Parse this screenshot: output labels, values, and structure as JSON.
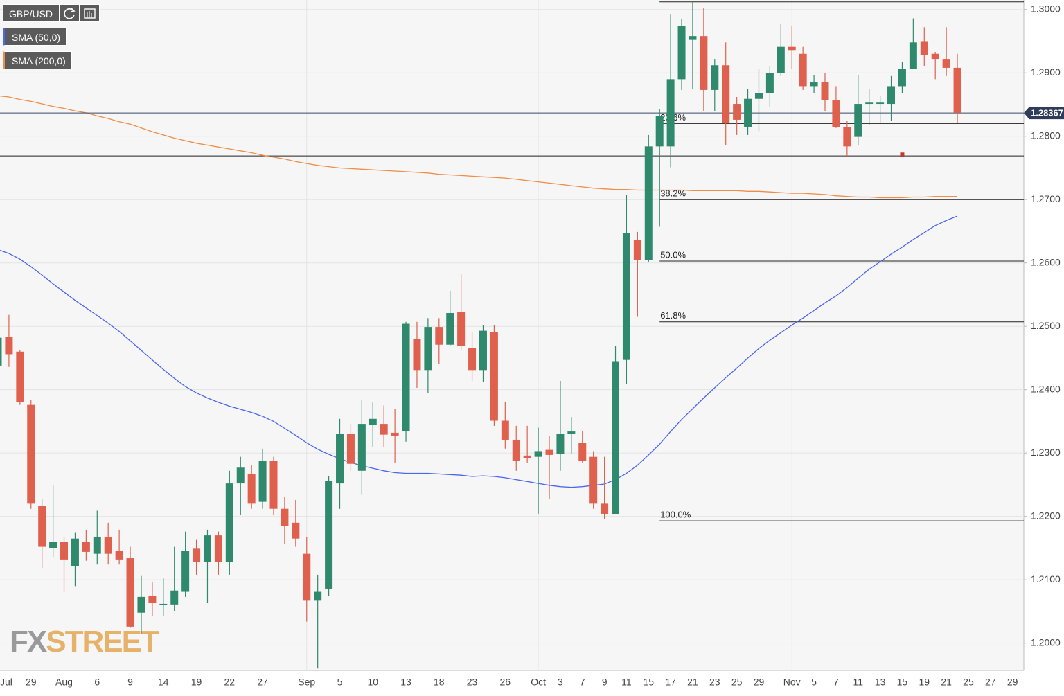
{
  "chart_data": {
    "type": "candlestick",
    "symbol": "GBP/USD",
    "categories": [
      "Jul",
      null,
      null,
      "29",
      null,
      null,
      "Aug",
      null,
      null,
      "6",
      null,
      null,
      "9",
      null,
      null,
      "14",
      null,
      null,
      "19",
      null,
      null,
      "22",
      null,
      null,
      "27",
      null,
      null,
      null,
      "Sep",
      null,
      null,
      "5",
      null,
      null,
      "10",
      null,
      null,
      "13",
      null,
      null,
      "18",
      null,
      null,
      "23",
      null,
      null,
      "26",
      null,
      null,
      "Oct",
      null,
      "3",
      null,
      "7",
      null,
      "9",
      null,
      "11",
      null,
      "15",
      null,
      "17",
      null,
      "21",
      null,
      "23",
      null,
      "25",
      null,
      "29",
      null,
      null,
      "Nov",
      null,
      "5",
      null,
      "7",
      null,
      "11",
      null,
      "13",
      null,
      "15",
      null,
      "19",
      null,
      "21",
      null,
      "25",
      null,
      "27",
      null,
      "29"
    ],
    "open": [
      1.2438,
      1.2483,
      1.246,
      1.2376,
      1.2217,
      1.215,
      1.216,
      1.2121,
      1.216,
      1.2141,
      1.2168,
      1.2146,
      1.2134,
      1.2048,
      1.2075,
      1.2061,
      1.2061,
      1.2081,
      1.2149,
      1.2128,
      1.217,
      1.2128,
      1.2252,
      1.2267,
      1.2223,
      1.2288,
      1.2212,
      1.219,
      1.2141,
      1.2067,
      1.2086,
      1.2252,
      1.233,
      1.2272,
      1.2345,
      1.2346,
      1.2332,
      1.2335,
      1.248,
      1.2431,
      1.2499,
      1.2471,
      1.2523,
      1.2466,
      1.2431,
      1.2491,
      1.2351,
      1.2321,
      1.2296,
      1.2294,
      1.2305,
      1.2299,
      1.233,
      1.2316,
      1.2294,
      1.222,
      1.2204,
      1.2447,
      1.2636,
      1.2605,
      1.2784,
      1.2784,
      1.289,
      1.2952,
      1.2958,
      1.2873,
      1.2912,
      1.2851,
      1.2815,
      1.2859,
      1.2868,
      1.29,
      1.2941,
      1.293,
      1.2879,
      1.2886,
      1.2857,
      1.2815,
      1.2799,
      1.2851,
      1.2851,
      1.2851,
      1.2879,
      1.2906,
      1.295,
      1.293,
      1.2922,
      1.2908,
      null,
      null,
      null,
      null,
      null
    ],
    "high": [
      1.2485,
      1.2518,
      1.2463,
      1.2384,
      1.2228,
      1.225,
      1.2168,
      1.2175,
      1.2179,
      1.2209,
      1.219,
      1.2179,
      1.2152,
      1.2106,
      1.2097,
      1.2102,
      1.2152,
      1.2176,
      1.2163,
      1.2179,
      1.2176,
      1.2272,
      1.2294,
      1.2281,
      1.2307,
      1.2294,
      1.2231,
      1.2226,
      1.2168,
      1.2108,
      1.2263,
      1.2354,
      1.2346,
      1.2383,
      1.2381,
      1.2375,
      1.237,
      1.2507,
      1.2507,
      1.2513,
      1.2513,
      1.2556,
      1.2582,
      1.2491,
      1.2502,
      1.2502,
      1.2381,
      1.2343,
      1.2343,
      1.234,
      1.2327,
      1.2414,
      1.2357,
      1.2335,
      1.2303,
      1.2294,
      1.2469,
      1.2707,
      1.2649,
      1.2802,
      1.2843,
      1.2993,
      1.2985,
      1.3013,
      1.3002,
      1.2922,
      1.2948,
      1.2862,
      1.2875,
      1.2906,
      1.2911,
      1.2977,
      1.2974,
      1.2941,
      1.2897,
      1.29,
      1.2879,
      1.2824,
      1.2897,
      1.2875,
      1.2864,
      1.2895,
      1.2917,
      1.2986,
      1.2972,
      1.2933,
      1.2972,
      1.293,
      null,
      null,
      null,
      null,
      null
    ],
    "low": [
      1.243,
      1.2436,
      1.2376,
      1.2212,
      1.2119,
      1.2135,
      1.208,
      1.209,
      1.213,
      1.2124,
      1.2124,
      1.2124,
      1.2024,
      1.2015,
      1.2043,
      1.2043,
      1.2051,
      1.2073,
      1.2108,
      1.2064,
      1.2108,
      1.2108,
      1.2202,
      1.2212,
      1.2212,
      1.2202,
      1.2157,
      1.2152,
      1.2034,
      1.196,
      1.2075,
      1.2212,
      1.2272,
      1.2234,
      1.231,
      1.231,
      1.2285,
      1.2318,
      1.2403,
      1.2395,
      1.2441,
      1.2469,
      1.2463,
      1.2414,
      1.2412,
      1.2343,
      1.2307,
      1.2272,
      1.2285,
      1.2204,
      1.2228,
      1.2272,
      1.2299,
      1.2285,
      1.2212,
      1.2196,
      1.2204,
      1.2409,
      1.2515,
      1.2602,
      1.2657,
      1.2751,
      1.2873,
      1.2875,
      1.284,
      1.284,
      1.2786,
      1.2802,
      1.2802,
      1.2808,
      1.2846,
      1.2895,
      1.2906,
      1.2873,
      1.2868,
      1.284,
      1.2813,
      1.2769,
      1.2786,
      1.2818,
      1.2821,
      1.2824,
      1.2868,
      1.2906,
      1.2911,
      1.289,
      1.2895,
      1.2821,
      null,
      null,
      null,
      null,
      null
    ],
    "close": [
      1.2482,
      1.2456,
      1.2381,
      1.222,
      1.2152,
      1.216,
      1.2132,
      1.2165,
      1.2144,
      1.2168,
      1.2141,
      1.2132,
      1.2026,
      1.2073,
      1.2064,
      1.2062,
      1.2083,
      1.2146,
      1.2128,
      1.217,
      1.2128,
      1.2252,
      1.2277,
      1.222,
      1.2288,
      1.2212,
      1.2185,
      1.2165,
      1.2067,
      1.2081,
      1.2256,
      1.233,
      1.2283,
      1.2346,
      1.2354,
      1.2329,
      1.2327,
      1.2504,
      1.2431,
      1.2499,
      1.2471,
      1.2521,
      1.2469,
      1.2431,
      1.2493,
      1.2351,
      1.2321,
      1.2288,
      1.2292,
      1.2303,
      1.2297,
      1.233,
      1.2334,
      1.2288,
      1.222,
      1.2204,
      1.2445,
      1.2647,
      1.2605,
      1.2784,
      1.2832,
      1.289,
      1.2974,
      1.2958,
      1.2873,
      1.2912,
      1.2821,
      1.2826,
      1.2859,
      1.2868,
      1.29,
      1.2941,
      1.2936,
      1.2879,
      1.2886,
      1.2857,
      1.2815,
      1.2784,
      1.2851,
      1.2853,
      1.2853,
      1.2879,
      1.2906,
      1.2948,
      1.2928,
      1.2922,
      1.2908,
      1.2837,
      null,
      null,
      null,
      null,
      null
    ],
    "up_color": "#2f8a6d",
    "down_color": "#e0604e",
    "series": [
      {
        "name": "SMA (50,0)",
        "color": "#4a66f0",
        "values": [
          1.2621,
          1.2615,
          1.2606,
          1.2594,
          1.2581,
          1.2567,
          1.2554,
          1.2541,
          1.2529,
          1.2517,
          1.2505,
          1.2492,
          1.2477,
          1.2462,
          1.2447,
          1.2432,
          1.2418,
          1.2405,
          1.2395,
          1.2387,
          1.238,
          1.2374,
          1.2369,
          1.2364,
          1.2358,
          1.235,
          1.2339,
          1.2328,
          1.2316,
          1.2306,
          1.2298,
          1.2291,
          1.2285,
          1.228,
          1.2276,
          1.2272,
          1.2269,
          1.2268,
          1.2268,
          1.2268,
          1.2267,
          1.2266,
          1.2265,
          1.2263,
          1.2264,
          1.2263,
          1.2261,
          1.2258,
          1.2255,
          1.2252,
          1.2249,
          1.2247,
          1.2246,
          1.2247,
          1.2249,
          1.2251,
          1.2258,
          1.2268,
          1.2281,
          1.2297,
          1.2314,
          1.2334,
          1.2353,
          1.237,
          1.2387,
          1.2403,
          1.2419,
          1.2434,
          1.245,
          1.2465,
          1.2478,
          1.249,
          1.2502,
          1.2513,
          1.2525,
          1.2537,
          1.2548,
          1.2561,
          1.2576,
          1.259,
          1.2602,
          1.2614,
          1.2625,
          1.2637,
          1.2648,
          1.2659,
          1.2667,
          1.2674,
          null,
          null,
          null,
          null,
          null
        ]
      },
      {
        "name": "SMA (200,0)",
        "color": "#f08c45",
        "values": [
          1.2864,
          1.2862,
          1.2858,
          1.2855,
          1.2851,
          1.2847,
          1.2844,
          1.284,
          1.2837,
          1.2832,
          1.2828,
          1.2823,
          1.2819,
          1.2813,
          1.2807,
          1.2802,
          1.2797,
          1.2793,
          1.2789,
          1.2786,
          1.2783,
          1.278,
          1.2777,
          1.2774,
          1.277,
          1.2767,
          1.2764,
          1.276,
          1.2757,
          1.2754,
          1.2752,
          1.275,
          1.2749,
          1.2748,
          1.2747,
          1.2746,
          1.2745,
          1.2744,
          1.2743,
          1.2742,
          1.274,
          1.2739,
          1.2738,
          1.2737,
          1.2736,
          1.2735,
          1.2734,
          1.2732,
          1.273,
          1.2728,
          1.2726,
          1.2724,
          1.2722,
          1.272,
          1.2718,
          1.2717,
          1.2716,
          1.2716,
          1.2715,
          1.2715,
          1.2715,
          1.2715,
          1.2715,
          1.2714,
          1.2714,
          1.2714,
          1.2714,
          1.2714,
          1.2713,
          1.2713,
          1.2712,
          1.2711,
          1.271,
          1.271,
          1.2709,
          1.2708,
          1.2706,
          1.2705,
          1.2704,
          1.2704,
          1.2703,
          1.2703,
          1.2703,
          1.2704,
          1.2704,
          1.2705,
          1.2705,
          1.2705,
          null,
          null,
          null,
          null,
          null
        ]
      }
    ],
    "ylim": [
      1.1957,
      1.3015
    ],
    "yticks": [
      {
        "value": 1.2,
        "label": "1.2000"
      },
      {
        "value": 1.21,
        "label": "1.2100"
      },
      {
        "value": 1.22,
        "label": "1.2200"
      },
      {
        "value": 1.23,
        "label": "1.2300"
      },
      {
        "value": 1.24,
        "label": "1.2400"
      },
      {
        "value": 1.25,
        "label": "1.2500"
      },
      {
        "value": 1.26,
        "label": "1.2600"
      },
      {
        "value": 1.27,
        "label": "1.2700"
      },
      {
        "value": 1.28,
        "label": "1.2800"
      },
      {
        "value": 1.29,
        "label": "1.2900"
      },
      {
        "value": 1.3,
        "label": "1.3000"
      }
    ],
    "grid": true,
    "last_price": 1.28367,
    "horizontal_line": 1.2769,
    "fibonacci": {
      "start": 60,
      "levels": [
        {
          "value": 1.3012
        },
        {
          "value": 1.282,
          "label": "23.6%"
        },
        {
          "value": 1.27,
          "label": "38.2%"
        },
        {
          "value": 1.2603,
          "label": "50.0%"
        },
        {
          "value": 1.2507,
          "label": "61.8%"
        },
        {
          "value": 1.2193,
          "label": "100.0%"
        }
      ]
    },
    "alert_marker": {
      "index": 82,
      "value": 1.2771,
      "color": "#c0392b"
    },
    "watermark": [
      "FX",
      "STREET"
    ]
  }
}
